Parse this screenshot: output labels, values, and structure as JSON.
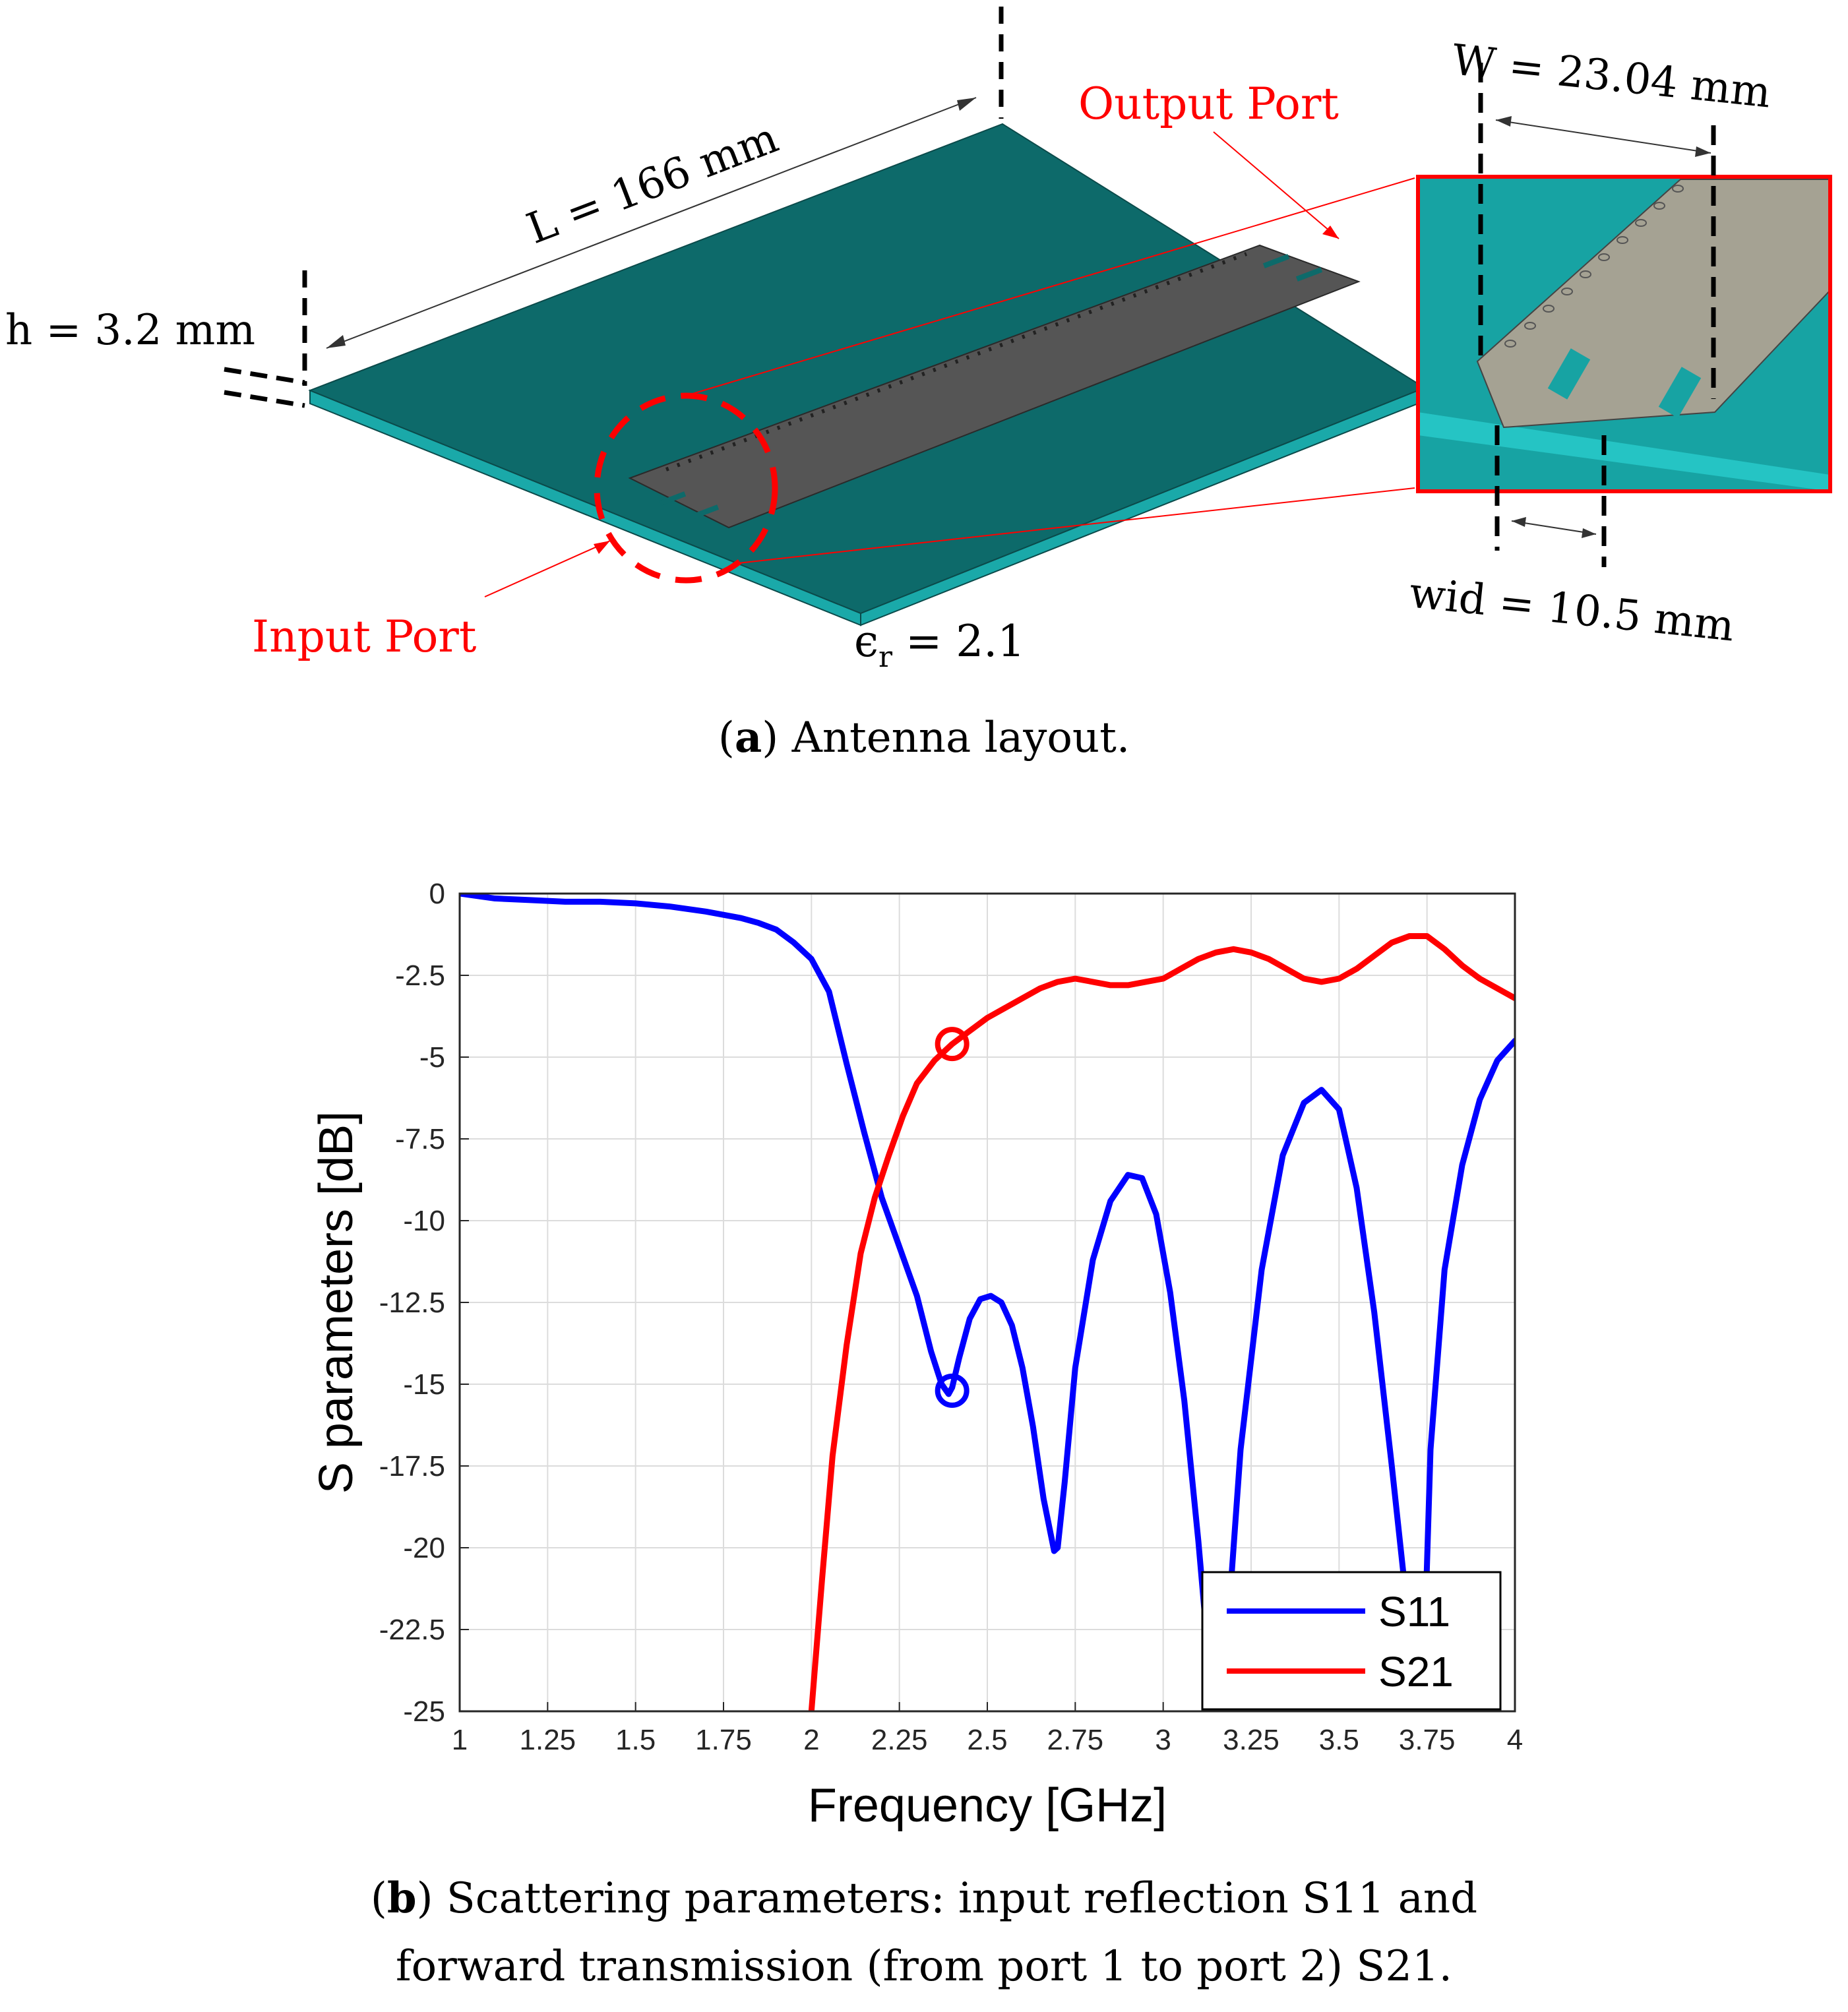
{
  "layout_figure": {
    "labels": {
      "length": "L = 166 mm",
      "height": "h = 3.2 mm",
      "width": "W = 23.04 mm",
      "wid": "wid = 10.5 mm",
      "eps_symbol": "ϵ",
      "eps_sub": "r",
      "eps_value": "= 2.1",
      "input_port": "Input Port",
      "output_port": "Output Port"
    },
    "caption": {
      "letter": "a",
      "text": "Antenna layout."
    },
    "colors": {
      "substrate_top": "#0d6a6a",
      "substrate_side": "#1aa9a9",
      "inset_top": "#17a3a3",
      "inset_side": "#25c4c4",
      "strip": "#555555",
      "inset_strip": "#a5a293",
      "annotation": "#ff0000"
    }
  },
  "chart_data": {
    "type": "line",
    "title": "",
    "xlabel": "Frequency [GHz]",
    "ylabel": "S parameters [dB]",
    "xlim": [
      1,
      4
    ],
    "ylim": [
      -25,
      0
    ],
    "xticks": [
      1,
      1.25,
      1.5,
      1.75,
      2,
      2.25,
      2.5,
      2.75,
      3,
      3.25,
      3.5,
      3.75,
      4
    ],
    "xtick_labels": [
      "1",
      "1.25",
      "1.5",
      "1.75",
      "2",
      "2.25",
      "2.5",
      "2.75",
      "3",
      "3.25",
      "3.5",
      "3.75",
      "4"
    ],
    "yticks": [
      0,
      -2.5,
      -5,
      -7.5,
      -10,
      -12.5,
      -15,
      -17.5,
      -20,
      -22.5,
      -25
    ],
    "ytick_labels": [
      "0",
      "-2.5",
      "-5",
      "-7.5",
      "-10",
      "-12.5",
      "-15",
      "-17.5",
      "-20",
      "-22.5",
      "-25"
    ],
    "grid": true,
    "legend_position": "bottom-right",
    "series": [
      {
        "name": "S11",
        "color": "#0000ff",
        "x": [
          1.0,
          1.1,
          1.2,
          1.3,
          1.4,
          1.5,
          1.6,
          1.7,
          1.8,
          1.85,
          1.9,
          1.95,
          2.0,
          2.05,
          2.1,
          2.15,
          2.2,
          2.25,
          2.3,
          2.34,
          2.37,
          2.39,
          2.4,
          2.42,
          2.45,
          2.48,
          2.51,
          2.54,
          2.57,
          2.6,
          2.63,
          2.66,
          2.69,
          2.7,
          2.72,
          2.75,
          2.8,
          2.85,
          2.9,
          2.94,
          2.98,
          3.02,
          3.06,
          3.1,
          3.13,
          3.16,
          3.18,
          3.22,
          3.28,
          3.34,
          3.4,
          3.45,
          3.5,
          3.55,
          3.6,
          3.65,
          3.7,
          3.72,
          3.74,
          3.76,
          3.8,
          3.85,
          3.9,
          3.95,
          4.0
        ],
        "y": [
          0,
          -0.15,
          -0.2,
          -0.25,
          -0.25,
          -0.3,
          -0.4,
          -0.55,
          -0.75,
          -0.9,
          -1.1,
          -1.5,
          -2.0,
          -3.0,
          -5.2,
          -7.3,
          -9.3,
          -10.8,
          -12.3,
          -14.0,
          -15.0,
          -15.3,
          -15.1,
          -14.2,
          -13.0,
          -12.4,
          -12.3,
          -12.5,
          -13.2,
          -14.5,
          -16.3,
          -18.5,
          -20.1,
          -20.0,
          -18.0,
          -14.5,
          -11.2,
          -9.4,
          -8.6,
          -8.7,
          -9.8,
          -12.2,
          -15.5,
          -19.8,
          -23.5,
          -25.0,
          -23.0,
          -17.0,
          -11.5,
          -8.0,
          -6.4,
          -6.0,
          -6.6,
          -9.0,
          -12.8,
          -17.5,
          -22.5,
          -25.0,
          -24.0,
          -17.0,
          -11.5,
          -8.3,
          -6.3,
          -5.1,
          -4.5
        ]
      },
      {
        "name": "S21",
        "color": "#ff0000",
        "x": [
          2.0,
          2.03,
          2.06,
          2.1,
          2.14,
          2.18,
          2.22,
          2.26,
          2.3,
          2.35,
          2.4,
          2.45,
          2.5,
          2.55,
          2.6,
          2.65,
          2.7,
          2.75,
          2.8,
          2.85,
          2.9,
          2.95,
          3.0,
          3.05,
          3.1,
          3.15,
          3.2,
          3.25,
          3.3,
          3.35,
          3.4,
          3.45,
          3.5,
          3.55,
          3.6,
          3.65,
          3.7,
          3.75,
          3.8,
          3.85,
          3.9,
          3.95,
          4.0
        ],
        "y": [
          -25.0,
          -21.0,
          -17.2,
          -13.8,
          -11.0,
          -9.3,
          -8.0,
          -6.8,
          -5.8,
          -5.1,
          -4.6,
          -4.2,
          -3.8,
          -3.5,
          -3.2,
          -2.9,
          -2.7,
          -2.6,
          -2.7,
          -2.8,
          -2.8,
          -2.7,
          -2.6,
          -2.3,
          -2.0,
          -1.8,
          -1.7,
          -1.8,
          -2.0,
          -2.3,
          -2.6,
          -2.7,
          -2.6,
          -2.3,
          -1.9,
          -1.5,
          -1.3,
          -1.3,
          -1.7,
          -2.2,
          -2.6,
          -2.9,
          -3.2
        ]
      }
    ],
    "markers": [
      {
        "series": "S11",
        "x": 2.4,
        "y": -15.2,
        "shape": "circle"
      },
      {
        "series": "S21",
        "x": 2.4,
        "y": -4.6,
        "shape": "circle"
      }
    ],
    "caption": {
      "letter": "b",
      "line1": ") Scattering parameters: input reflection S11 and",
      "line2": "forward transmission (from port 1 to port 2) S21."
    }
  }
}
